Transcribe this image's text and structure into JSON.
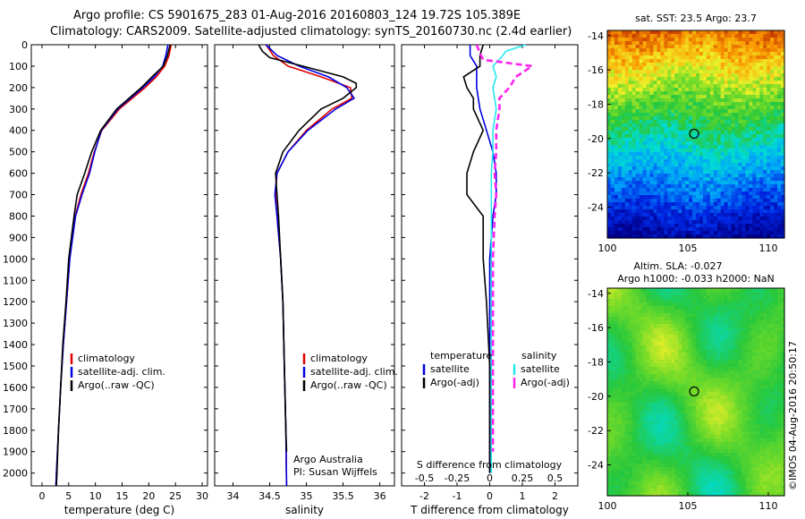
{
  "header": {
    "title_line1": "Argo profile: CS 5901675_283 01-Aug-2016 20160803_124 19.72S 105.389E",
    "title_line2": "Climatology: CARS2009. Satellite-adjusted climatology: synTS_20160730.nc (2.4d earlier)"
  },
  "credit": "©IMOS 04-Aug-2016 20:50:17",
  "colors": {
    "climatology": "#e00000",
    "satellite": "#0000e0",
    "argo": "#000000",
    "sal_satellite": "#22e8f0",
    "sal_argo": "#ff22ee"
  },
  "chart_data": [
    {
      "type": "line",
      "xlabel": "temperature (deg C)",
      "ylabel": "",
      "xlim": [
        -2,
        31
      ],
      "ylim": [
        2060,
        0
      ],
      "xticks": [
        0,
        5,
        10,
        15,
        20,
        25,
        30
      ],
      "yticks": [
        0,
        100,
        200,
        300,
        400,
        500,
        600,
        700,
        800,
        900,
        1000,
        1100,
        1200,
        1300,
        1400,
        1500,
        1600,
        1700,
        1800,
        1900,
        2000
      ],
      "legend": {
        "position": "lower-right",
        "entries": [
          "climatology",
          "satellite-adj. clim.",
          "Argo(..raw -QC)"
        ]
      },
      "series": [
        {
          "name": "climatology",
          "depth": [
            0,
            50,
            100,
            150,
            200,
            300,
            400,
            500,
            600,
            700,
            800,
            1000,
            1200,
            1400,
            1600,
            1800,
            2000,
            2060
          ],
          "values": [
            24.2,
            23.8,
            23.0,
            21.4,
            19.3,
            14.5,
            11.2,
            9.8,
            8.7,
            7.3,
            6.2,
            5.2,
            4.6,
            4.0,
            3.5,
            3.1,
            2.7,
            2.6
          ]
        },
        {
          "name": "satellite-adj. clim.",
          "depth": [
            0,
            50,
            100,
            150,
            200,
            300,
            400,
            500,
            600,
            700,
            800,
            1000,
            1200,
            1400,
            1600,
            1800,
            2000,
            2060
          ],
          "values": [
            23.6,
            23.2,
            22.6,
            21.0,
            18.9,
            14.2,
            11.1,
            9.9,
            8.9,
            7.5,
            6.3,
            5.2,
            4.6,
            4.0,
            3.5,
            3.1,
            2.7,
            2.6
          ]
        },
        {
          "name": "Argo(..raw -QC)",
          "depth": [
            0,
            50,
            100,
            150,
            200,
            300,
            400,
            500,
            600,
            700,
            800,
            1000,
            1200,
            1400,
            1600,
            1800,
            2000,
            2060
          ],
          "values": [
            24.0,
            23.5,
            22.7,
            20.6,
            18.6,
            14.0,
            11.0,
            9.3,
            8.0,
            6.6,
            6.0,
            5.0,
            4.5,
            3.9,
            3.5,
            3.1,
            2.8,
            2.7
          ]
        }
      ]
    },
    {
      "type": "line",
      "xlabel": "salinity",
      "ylabel": "",
      "xlim": [
        33.75,
        36.2
      ],
      "ylim": [
        2060,
        0
      ],
      "xticks": [
        34,
        34.5,
        35,
        35.5,
        36
      ],
      "xticklabels": [
        "34",
        "34.5",
        "35",
        "35.5",
        "36"
      ],
      "legend": {
        "position": "lower-right",
        "entries": [
          "climatology",
          "satellite-adj. clim.",
          "Argo(..raw -QC)"
        ]
      },
      "annotation": [
        "Argo Australia",
        "PI: Susan Wijffels"
      ],
      "series": [
        {
          "name": "climatology",
          "depth": [
            0,
            50,
            100,
            150,
            200,
            250,
            300,
            400,
            500,
            600,
            700,
            800,
            1000,
            1200,
            1500,
            1800,
            2060
          ],
          "values": [
            34.45,
            34.55,
            34.75,
            35.2,
            35.6,
            35.62,
            35.35,
            35.0,
            34.75,
            34.6,
            34.58,
            34.6,
            34.65,
            34.68,
            34.7,
            34.72,
            34.73
          ]
        },
        {
          "name": "satellite-adj. clim.",
          "depth": [
            0,
            50,
            100,
            150,
            200,
            250,
            300,
            400,
            500,
            600,
            700,
            800,
            1000,
            1200,
            1500,
            1800,
            2060
          ],
          "values": [
            34.45,
            34.6,
            34.9,
            35.3,
            35.55,
            35.65,
            35.4,
            35.02,
            34.75,
            34.6,
            34.57,
            34.6,
            34.65,
            34.68,
            34.7,
            34.72,
            34.73
          ]
        },
        {
          "name": "Argo(..raw -QC)",
          "depth": [
            0,
            30,
            60,
            100,
            150,
            180,
            200,
            250,
            300,
            400,
            500,
            600,
            700,
            800,
            1000,
            1200,
            1500,
            1800,
            1900
          ],
          "values": [
            34.35,
            34.4,
            34.5,
            34.95,
            35.5,
            35.68,
            35.68,
            35.5,
            35.2,
            34.9,
            34.68,
            34.58,
            34.6,
            34.62,
            34.65,
            34.68,
            34.7,
            34.72,
            34.73
          ]
        }
      ]
    },
    {
      "type": "line",
      "xlabel": "T difference from climatology",
      "xlabel_top": "S difference from climatology",
      "xlim": [
        -2.7,
        2.7
      ],
      "ylim": [
        2060,
        0
      ],
      "xticks": [
        -2,
        -1,
        0,
        1,
        2
      ],
      "xticks_top": [
        -0.5,
        -0.25,
        0,
        0.25,
        0.5
      ],
      "legend": {
        "position": "lower",
        "temperature_heading": "temperature",
        "salinity_heading": "salinity",
        "entries": [
          "satellite",
          "Argo(-adj)"
        ]
      },
      "series": [
        {
          "name": "temperature satellite",
          "depth": [
            0,
            50,
            100,
            150,
            200,
            300,
            400,
            500,
            600,
            700,
            800,
            1000,
            1200,
            1500,
            1800,
            2000
          ],
          "values": [
            -0.6,
            -0.6,
            -0.4,
            -0.4,
            -0.4,
            -0.3,
            -0.1,
            0.1,
            0.2,
            0.2,
            0.1,
            0,
            0,
            0,
            0,
            0
          ]
        },
        {
          "name": "temperature Argo(-adj)",
          "depth": [
            0,
            50,
            100,
            150,
            200,
            250,
            300,
            400,
            500,
            600,
            700,
            800,
            1000,
            1200,
            1500,
            1800,
            2000
          ],
          "values": [
            -0.2,
            -0.3,
            -0.3,
            -0.8,
            -0.7,
            -0.5,
            -0.5,
            -0.2,
            -0.5,
            -0.7,
            -0.7,
            -0.2,
            -0.2,
            -0.1,
            0,
            0,
            0
          ]
        },
        {
          "name": "salinity satellite",
          "depth": [
            0,
            30,
            60,
            100,
            150,
            200,
            300,
            400,
            500,
            600,
            800,
            1000,
            1500,
            2000
          ],
          "values": [
            1.1,
            0.5,
            0.35,
            0.1,
            0.2,
            0.1,
            0.2,
            0.1,
            0.1,
            0.05,
            0.05,
            0.05,
            0.05,
            0.05
          ]
        },
        {
          "name": "salinity Argo(-adj)",
          "depth": [
            0,
            40,
            70,
            100,
            150,
            200,
            250,
            300,
            400,
            500,
            600,
            700,
            800,
            1000,
            1500,
            1900
          ],
          "values": [
            -0.4,
            -0.3,
            -0.2,
            1.3,
            0.8,
            0.6,
            0.3,
            0.3,
            0.2,
            0.2,
            0.15,
            0.2,
            0.15,
            0.1,
            0.1,
            0.1
          ]
        }
      ]
    },
    {
      "type": "heatmap",
      "title": "sat. SST: 23.5 Argo: 23.7",
      "xlim": [
        100,
        111
      ],
      "ylim": [
        -25.8,
        -13.7
      ],
      "xticks": [
        100,
        105,
        110
      ],
      "yticks": [
        -14,
        -16,
        -18,
        -20,
        -22,
        -24
      ],
      "marker": {
        "lon": 105.389,
        "lat": -19.72
      }
    },
    {
      "type": "heatmap",
      "title_line1": "Altim. SLA: -0.027",
      "title_line2": "Argo h1000: -0.033 h2000: NaN",
      "xlim": [
        100,
        111
      ],
      "ylim": [
        -25.8,
        -13.7
      ],
      "xticks": [
        100,
        105,
        110
      ],
      "yticks": [
        -14,
        -16,
        -18,
        -20,
        -22,
        -24
      ],
      "marker": {
        "lon": 105.389,
        "lat": -19.72
      }
    }
  ]
}
